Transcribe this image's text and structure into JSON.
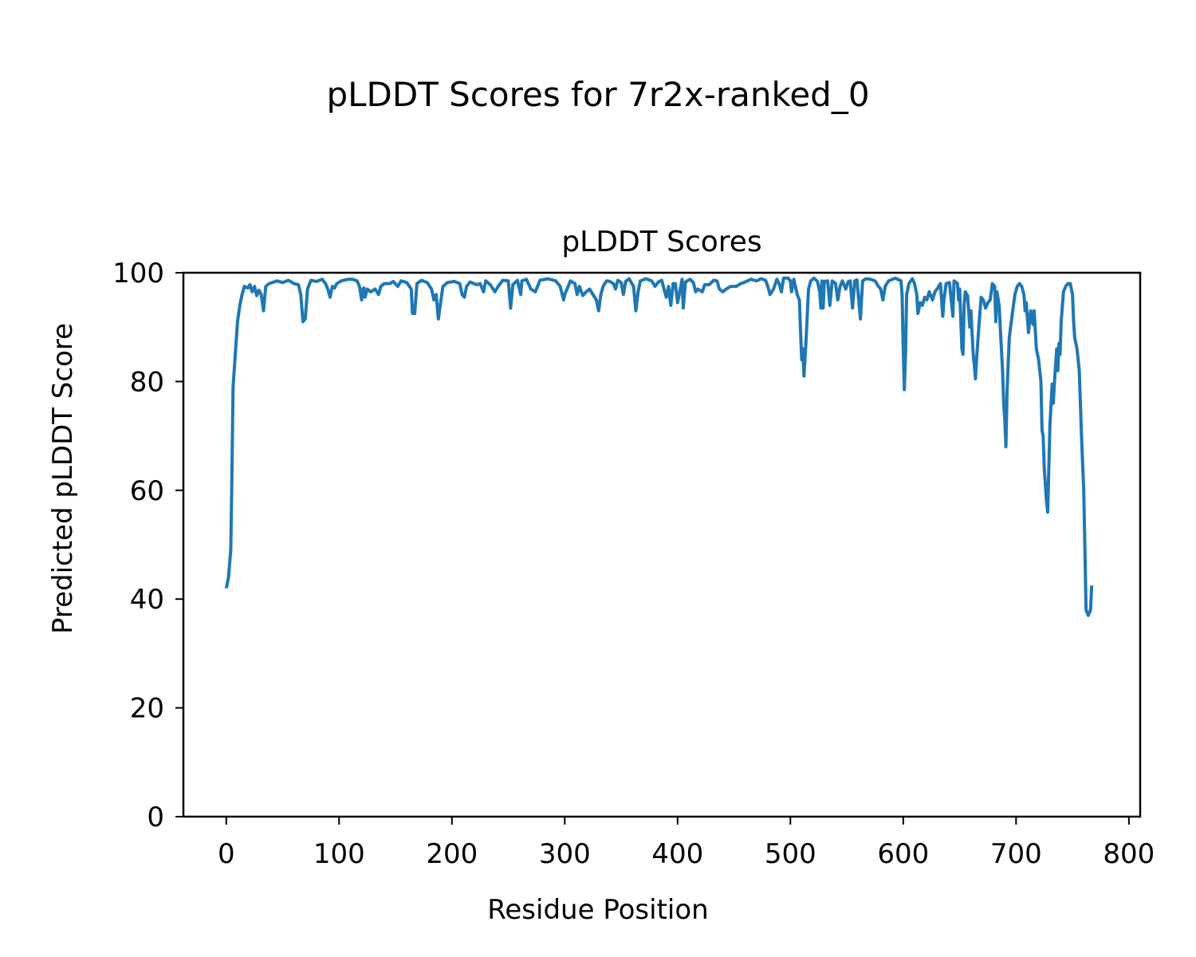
{
  "chart_data": {
    "type": "line",
    "suptitle": "pLDDT Scores for 7r2x-ranked_0",
    "title": "pLDDT Scores",
    "xlabel": "Residue Position",
    "ylabel": "Predicted pLDDT Score",
    "xlim": [
      -38,
      810
    ],
    "ylim": [
      0,
      100
    ],
    "xticks": [
      0,
      100,
      200,
      300,
      400,
      500,
      600,
      700,
      800
    ],
    "yticks": [
      0,
      20,
      40,
      60,
      80,
      100
    ],
    "grid": false,
    "line_color": "#1f77b4",
    "series": [
      {
        "name": "",
        "points": [
          [
            0,
            42
          ],
          [
            2,
            44
          ],
          [
            4,
            49
          ],
          [
            5,
            62
          ],
          [
            6,
            79
          ],
          [
            8,
            85
          ],
          [
            10,
            91
          ],
          [
            12,
            94
          ],
          [
            14,
            96
          ],
          [
            16,
            97.5
          ],
          [
            19,
            97.2
          ],
          [
            21,
            97.8
          ],
          [
            23,
            96.5
          ],
          [
            25,
            97.5
          ],
          [
            27,
            95.8
          ],
          [
            29,
            96.8
          ],
          [
            31,
            96
          ],
          [
            33,
            93
          ],
          [
            35,
            97.5
          ],
          [
            38,
            98
          ],
          [
            45,
            98.5
          ],
          [
            50,
            98.2
          ],
          [
            55,
            98.6
          ],
          [
            60,
            98
          ],
          [
            64,
            97.8
          ],
          [
            66,
            96
          ],
          [
            68,
            91
          ],
          [
            70,
            91.5
          ],
          [
            72,
            97
          ],
          [
            75,
            98.6
          ],
          [
            80,
            98.4
          ],
          [
            85,
            98.8
          ],
          [
            88,
            98
          ],
          [
            90,
            97
          ],
          [
            92,
            95.5
          ],
          [
            94,
            97.5
          ],
          [
            96,
            97.2
          ],
          [
            98,
            98
          ],
          [
            102,
            98.5
          ],
          [
            108,
            98.8
          ],
          [
            112,
            98.8
          ],
          [
            116,
            98.5
          ],
          [
            118,
            97.5
          ],
          [
            120,
            95
          ],
          [
            121,
            97
          ],
          [
            122,
            97.2
          ],
          [
            123,
            95.5
          ],
          [
            125,
            97
          ],
          [
            128,
            96.5
          ],
          [
            132,
            97
          ],
          [
            135,
            96
          ],
          [
            137,
            97.5
          ],
          [
            140,
            98
          ],
          [
            145,
            98
          ],
          [
            148,
            98.4
          ],
          [
            152,
            97.5
          ],
          [
            155,
            98.5
          ],
          [
            160,
            98.2
          ],
          [
            164,
            97
          ],
          [
            165,
            92.5
          ],
          [
            167,
            92.5
          ],
          [
            169,
            98
          ],
          [
            173,
            98.6
          ],
          [
            178,
            98.2
          ],
          [
            182,
            97
          ],
          [
            184,
            95
          ],
          [
            186,
            96
          ],
          [
            188,
            91.5
          ],
          [
            190,
            94.5
          ],
          [
            192,
            97.5
          ],
          [
            196,
            98.2
          ],
          [
            202,
            98.4
          ],
          [
            207,
            98
          ],
          [
            209,
            96
          ],
          [
            211,
            95.5
          ],
          [
            213,
            97.5
          ],
          [
            216,
            98.3
          ],
          [
            222,
            97.8
          ],
          [
            225,
            98
          ],
          [
            228,
            96.5
          ],
          [
            230,
            98.5
          ],
          [
            234,
            97.8
          ],
          [
            238,
            96.5
          ],
          [
            241,
            97.5
          ],
          [
            245,
            98.6
          ],
          [
            250,
            98.5
          ],
          [
            252,
            93.5
          ],
          [
            254,
            97.8
          ],
          [
            258,
            98.6
          ],
          [
            261,
            96
          ],
          [
            262,
            98.5
          ],
          [
            266,
            98.8
          ],
          [
            270,
            97
          ],
          [
            274,
            96.5
          ],
          [
            278,
            98.6
          ],
          [
            285,
            98.9
          ],
          [
            292,
            98.5
          ],
          [
            296,
            97.5
          ],
          [
            299,
            95
          ],
          [
            300,
            96
          ],
          [
            302,
            97
          ],
          [
            305,
            98.5
          ],
          [
            309,
            98
          ],
          [
            311,
            96
          ],
          [
            313,
            97.5
          ],
          [
            316,
            95.8
          ],
          [
            319,
            96.5
          ],
          [
            322,
            97
          ],
          [
            325,
            96
          ],
          [
            328,
            95
          ],
          [
            330,
            93
          ],
          [
            332,
            96
          ],
          [
            334,
            97.5
          ],
          [
            337,
            98.5
          ],
          [
            340,
            98.4
          ],
          [
            343,
            98
          ],
          [
            345,
            97
          ],
          [
            347,
            98.6
          ],
          [
            350,
            98.2
          ],
          [
            352,
            96
          ],
          [
            354,
            98.4
          ],
          [
            357,
            98.9
          ],
          [
            361,
            97.5
          ],
          [
            363,
            93
          ],
          [
            365,
            96.5
          ],
          [
            367,
            98.5
          ],
          [
            372,
            98.9
          ],
          [
            377,
            98.5
          ],
          [
            380,
            97.5
          ],
          [
            383,
            98.3
          ],
          [
            386,
            98.6
          ],
          [
            388,
            97
          ],
          [
            390,
            95.5
          ],
          [
            392,
            97.5
          ],
          [
            394,
            94
          ],
          [
            396,
            98
          ],
          [
            398,
            98
          ],
          [
            400,
            94.5
          ],
          [
            402,
            96.5
          ],
          [
            404,
            98.8
          ],
          [
            405,
            93.5
          ],
          [
            407,
            98.3
          ],
          [
            411,
            98.8
          ],
          [
            414,
            98.2
          ],
          [
            416,
            96.5
          ],
          [
            418,
            97
          ],
          [
            422,
            96.5
          ],
          [
            424,
            97.8
          ],
          [
            428,
            97.8
          ],
          [
            432,
            98.6
          ],
          [
            435,
            98.5
          ],
          [
            437,
            97
          ],
          [
            440,
            96.5
          ],
          [
            443,
            97
          ],
          [
            447,
            97.5
          ],
          [
            452,
            97.5
          ],
          [
            456,
            98
          ],
          [
            460,
            98.3
          ],
          [
            465,
            98.8
          ],
          [
            470,
            98.5
          ],
          [
            474,
            98.9
          ],
          [
            478,
            98.6
          ],
          [
            480,
            97.5
          ],
          [
            482,
            96
          ],
          [
            485,
            97
          ],
          [
            488,
            98.8
          ],
          [
            490,
            98
          ],
          [
            492,
            96.5
          ],
          [
            494,
            99
          ],
          [
            498,
            99
          ],
          [
            500,
            98.5
          ],
          [
            501,
            96.5
          ],
          [
            503,
            98.8
          ],
          [
            506,
            96
          ],
          [
            508,
            95
          ],
          [
            509,
            89
          ],
          [
            510,
            84
          ],
          [
            511,
            86
          ],
          [
            512,
            81
          ],
          [
            514,
            88
          ],
          [
            516,
            97
          ],
          [
            518,
            98.5
          ],
          [
            521,
            99
          ],
          [
            524,
            98.4
          ],
          [
            526,
            96.5
          ],
          [
            527,
            93.5
          ],
          [
            528,
            98.5
          ],
          [
            529,
            93.5
          ],
          [
            530,
            98.4
          ],
          [
            533,
            98.5
          ],
          [
            535,
            94
          ],
          [
            537,
            98.5
          ],
          [
            540,
            98
          ],
          [
            542,
            95
          ],
          [
            544,
            97.5
          ],
          [
            546,
            98.5
          ],
          [
            549,
            97
          ],
          [
            551,
            98.3
          ],
          [
            553,
            98.5
          ],
          [
            555,
            93.5
          ],
          [
            557,
            98.5
          ],
          [
            559,
            98.7
          ],
          [
            562,
            91.5
          ],
          [
            564,
            98.5
          ],
          [
            567,
            98.9
          ],
          [
            571,
            98.8
          ],
          [
            575,
            98.5
          ],
          [
            578,
            97.5
          ],
          [
            580,
            97
          ],
          [
            582,
            95
          ],
          [
            584,
            97.5
          ],
          [
            587,
            98.5
          ],
          [
            593,
            99
          ],
          [
            598,
            98.5
          ],
          [
            599,
            96
          ],
          [
            600,
            86
          ],
          [
            601,
            78.5
          ],
          [
            602,
            85
          ],
          [
            603,
            96
          ],
          [
            605,
            98
          ],
          [
            608,
            98.9
          ],
          [
            610,
            98
          ],
          [
            612,
            96
          ],
          [
            613,
            92.5
          ],
          [
            615,
            94.5
          ],
          [
            617,
            94
          ],
          [
            619,
            95.5
          ],
          [
            621,
            95
          ],
          [
            623,
            96.5
          ],
          [
            626,
            95
          ],
          [
            628,
            96.5
          ],
          [
            630,
            97
          ],
          [
            633,
            98
          ],
          [
            635,
            92
          ],
          [
            636,
            95
          ],
          [
            638,
            98
          ],
          [
            641,
            98.2
          ],
          [
            644,
            92
          ],
          [
            645,
            98.5
          ],
          [
            648,
            98
          ],
          [
            649,
            95
          ],
          [
            650,
            97
          ],
          [
            652,
            86
          ],
          [
            653,
            85
          ],
          [
            654,
            94
          ],
          [
            655,
            96.5
          ],
          [
            657,
            95.8
          ],
          [
            658,
            93
          ],
          [
            659,
            90
          ],
          [
            660,
            93
          ],
          [
            662,
            85
          ],
          [
            663,
            83
          ],
          [
            664,
            80.5
          ],
          [
            665,
            84
          ],
          [
            667,
            90
          ],
          [
            669,
            95.5
          ],
          [
            671,
            95
          ],
          [
            673,
            93.5
          ],
          [
            675,
            94.5
          ],
          [
            677,
            95
          ],
          [
            679,
            98
          ],
          [
            681,
            97.5
          ],
          [
            682,
            91
          ],
          [
            683,
            96.5
          ],
          [
            685,
            94
          ],
          [
            686,
            90
          ],
          [
            688,
            82
          ],
          [
            689,
            76
          ],
          [
            690,
            73
          ],
          [
            691,
            68
          ],
          [
            692,
            78
          ],
          [
            694,
            88
          ],
          [
            697,
            93
          ],
          [
            699,
            96
          ],
          [
            701,
            97.5
          ],
          [
            703,
            98
          ],
          [
            705,
            97.5
          ],
          [
            707,
            96
          ],
          [
            708,
            93
          ],
          [
            709,
            94.5
          ],
          [
            711,
            89
          ],
          [
            713,
            93
          ],
          [
            715,
            90.5
          ],
          [
            716,
            93
          ],
          [
            718,
            86
          ],
          [
            720,
            84
          ],
          [
            722,
            80
          ],
          [
            723,
            71
          ],
          [
            724,
            70
          ],
          [
            725,
            64
          ],
          [
            727,
            58
          ],
          [
            728,
            56
          ],
          [
            730,
            72
          ],
          [
            732,
            79.5
          ],
          [
            733,
            76
          ],
          [
            734,
            80
          ],
          [
            736,
            86
          ],
          [
            737,
            82
          ],
          [
            738,
            87
          ],
          [
            739,
            85
          ],
          [
            740,
            91
          ],
          [
            742,
            96.5
          ],
          [
            744,
            97.5
          ],
          [
            746,
            98
          ],
          [
            748,
            98
          ],
          [
            750,
            96
          ],
          [
            751,
            91
          ],
          [
            752,
            88
          ],
          [
            754,
            86
          ],
          [
            756,
            82
          ],
          [
            758,
            70
          ],
          [
            760,
            60
          ],
          [
            761,
            49
          ],
          [
            762,
            38
          ],
          [
            764,
            37
          ],
          [
            766,
            38
          ],
          [
            767,
            42.5
          ]
        ]
      }
    ]
  }
}
